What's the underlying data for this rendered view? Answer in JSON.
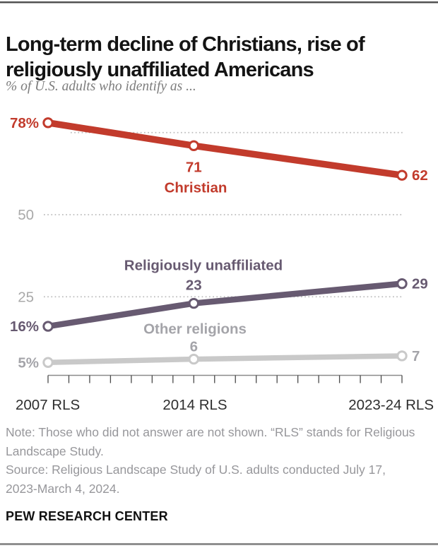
{
  "header": {
    "title_lines": [
      "Long-term decline of Christians, rise of",
      "religiously unaffiliated Americans"
    ],
    "subtitle": "% of U.S. adults who identify as ..."
  },
  "chart_data": {
    "type": "line",
    "title": "Long-term decline of Christians, rise of religiously unaffiliated Americans",
    "subtitle": "% of U.S. adults who identify as ...",
    "x_axis": {
      "categories": [
        "2007 RLS",
        "2014 RLS",
        "2023-24 RLS"
      ],
      "plot_years": [
        2007,
        2014,
        2024
      ],
      "tick_year_start": 2007,
      "tick_year_end": 2024
    },
    "y_axis": {
      "ylim": [
        0,
        85
      ],
      "gridlines": [
        25,
        50,
        75
      ],
      "labeled_gridlines": [
        "25",
        "50"
      ],
      "grid_on": true
    },
    "legend_position": "inline-labels",
    "series": [
      {
        "name": "Christian",
        "color": "#c23b2c",
        "values": [
          78,
          71,
          62
        ],
        "point_labels": [
          "78%",
          "71",
          "62"
        ]
      },
      {
        "name": "Religiously unaffiliated",
        "color": "#675a71",
        "values": [
          16,
          23,
          29
        ],
        "point_labels": [
          "16%",
          "23",
          "29"
        ]
      },
      {
        "name": "Other religions",
        "color": "#c9c9c9",
        "label_color": "#a4a4a9",
        "values": [
          5,
          6,
          7
        ],
        "point_labels": [
          "5%",
          "6",
          "7"
        ]
      }
    ]
  },
  "notes": {
    "note": "Note: Those who did not answer are not shown. “RLS” stands for Religious Landscape Study.",
    "source": "Source: Religious Landscape Study of U.S. adults conducted July 17, 2023-March 4, 2024."
  },
  "footer": {
    "brand": "PEW RESEARCH CENTER"
  }
}
